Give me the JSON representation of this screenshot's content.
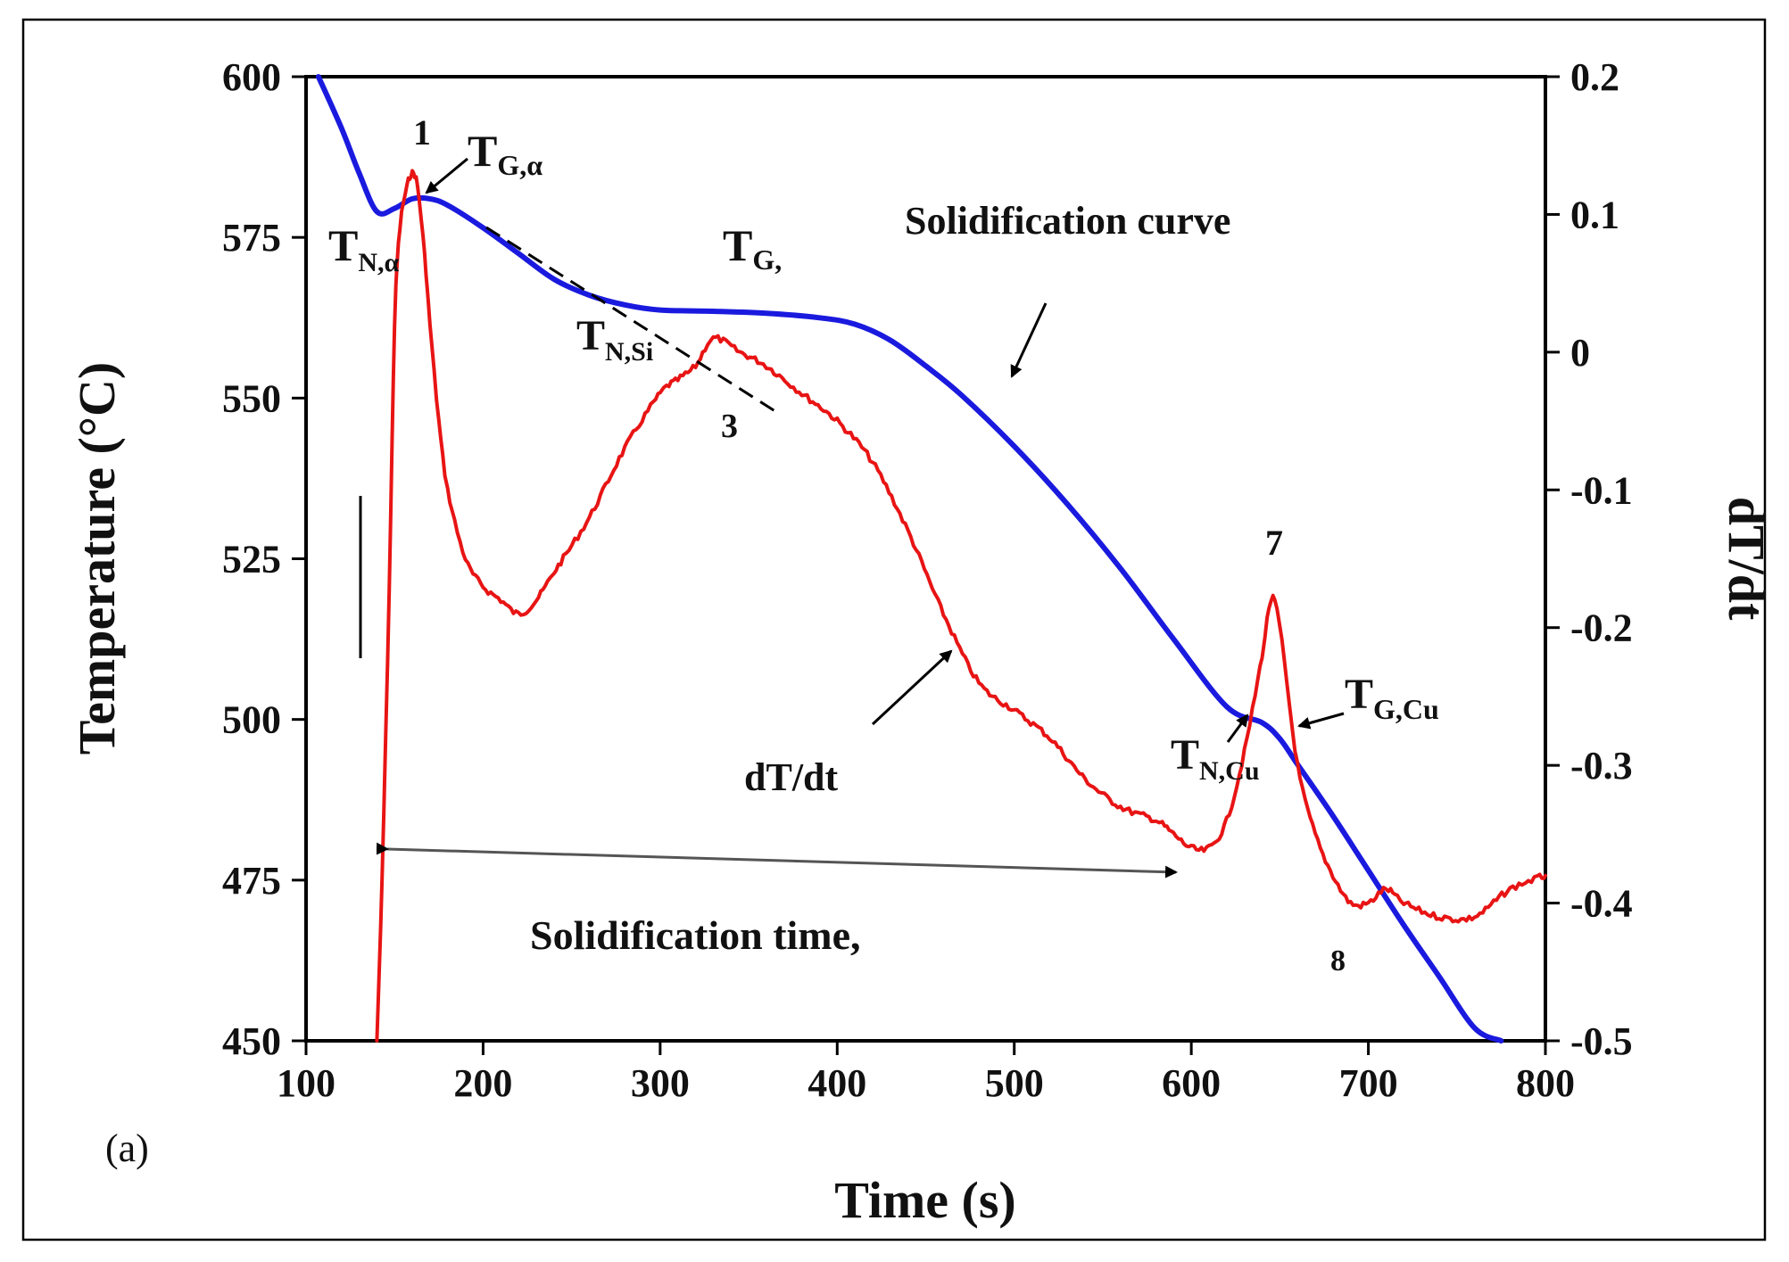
{
  "chart_data": {
    "type": "line",
    "panel_label": "(a)",
    "xlabel": "Time (s)",
    "ylabel": "Temperature (°C)",
    "y2label": "dT/dt",
    "xlim": [
      100,
      800
    ],
    "ylim": [
      450,
      600
    ],
    "y2lim": [
      -0.5,
      0.2
    ],
    "x_ticks": [
      100,
      200,
      300,
      400,
      500,
      600,
      700,
      800
    ],
    "y_ticks": [
      450,
      475,
      500,
      525,
      550,
      575,
      600
    ],
    "y2_ticks": [
      "-0.5",
      "-0.4",
      "-0.3",
      "-0.2",
      "-0.1",
      "0",
      "0.1",
      "0.2"
    ],
    "colors": {
      "solidification": "#1a1adf",
      "derivative": "#e81414",
      "axis": "#000000"
    },
    "series": [
      {
        "axis": "left",
        "color": "#1a1adf",
        "x": [
          107,
          120,
          130,
          140,
          150,
          160,
          170,
          180,
          200,
          220,
          240,
          260,
          280,
          300,
          330,
          360,
          390,
          410,
          430,
          450,
          470,
          500,
          530,
          560,
          590,
          620,
          640,
          650,
          660,
          680,
          700,
          720,
          740,
          760,
          775
        ],
        "y": [
          600,
          592,
          585,
          579,
          579.5,
          581,
          581,
          580,
          576.5,
          572.5,
          568.5,
          566,
          564.5,
          563.7,
          563.5,
          563.2,
          562.5,
          561.5,
          559,
          555,
          550.5,
          542.5,
          533.5,
          523.5,
          512.5,
          502,
          499.5,
          497,
          493,
          485,
          476.5,
          468,
          460,
          452,
          450
        ]
      },
      {
        "axis": "right",
        "color": "#e81414",
        "x": [
          140,
          143,
          147,
          150,
          153,
          157,
          160,
          163,
          167,
          170,
          175,
          180,
          190,
          200,
          210,
          220,
          230,
          240,
          260,
          280,
          300,
          310,
          320,
          330,
          345,
          360,
          380,
          400,
          420,
          440,
          460,
          480,
          500,
          520,
          540,
          560,
          580,
          590,
          600,
          610,
          620,
          630,
          640,
          645,
          650,
          660,
          670,
          680,
          690,
          700,
          710,
          720,
          740,
          760,
          780,
          800
        ],
        "y": [
          -0.5,
          -0.38,
          -0.17,
          0.02,
          0.09,
          0.12,
          0.13,
          0.12,
          0.07,
          0.02,
          -0.05,
          -0.1,
          -0.15,
          -0.17,
          -0.18,
          -0.19,
          -0.18,
          -0.16,
          -0.12,
          -0.07,
          -0.03,
          -0.02,
          -0.01,
          0.01,
          0.0,
          -0.01,
          -0.03,
          -0.05,
          -0.08,
          -0.13,
          -0.19,
          -0.24,
          -0.26,
          -0.28,
          -0.31,
          -0.33,
          -0.34,
          -0.35,
          -0.36,
          -0.36,
          -0.34,
          -0.29,
          -0.22,
          -0.18,
          -0.2,
          -0.3,
          -0.35,
          -0.38,
          -0.4,
          -0.4,
          -0.39,
          -0.4,
          -0.41,
          -0.41,
          -0.39,
          -0.38
        ]
      }
    ],
    "annotations": {
      "peak_1": "1",
      "peak_3": "3",
      "peak_7": "7",
      "peak_8": "8",
      "solidification_curve": "Solidification curve",
      "dtdt_label": "dT/dt",
      "solidification_time": "Solidification time,",
      "t_symbol": "T",
      "sub_g_alpha": "G,α",
      "sub_n_alpha": "N,α",
      "sub_g": "G,",
      "sub_n_si": "N,Si",
      "sub_n_cu": "N,Cu",
      "sub_g_cu": "G,Cu"
    }
  }
}
